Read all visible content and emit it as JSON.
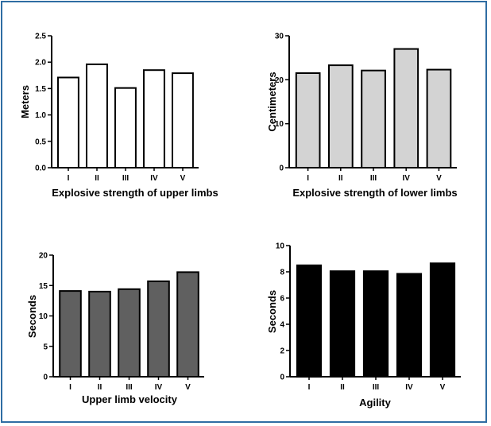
{
  "colors": {
    "frame": "#2f6da3"
  },
  "chart_data": [
    {
      "type": "bar",
      "categories": [
        "I",
        "II",
        "III",
        "IV",
        "V"
      ],
      "values": [
        1.71,
        1.96,
        1.51,
        1.85,
        1.79
      ],
      "title": "",
      "xlabel": "Explosive strength of upper limbs",
      "ylabel": "Meters",
      "ylim": [
        0,
        2.5
      ],
      "yticks": [
        "0.0",
        "0.5",
        "1.0",
        "1.5",
        "2.0",
        "2.5"
      ],
      "bar_color": "#ffffff",
      "grid": false
    },
    {
      "type": "bar",
      "categories": [
        "I",
        "II",
        "III",
        "IV",
        "V"
      ],
      "values": [
        21.5,
        23.3,
        22.1,
        27.0,
        22.3
      ],
      "title": "",
      "xlabel": "Explosive strength of lower limbs",
      "ylabel": "Centimeters",
      "ylim": [
        0,
        30
      ],
      "yticks": [
        "0",
        "10",
        "20",
        "30"
      ],
      "bar_color": "#d3d3d3",
      "grid": false
    },
    {
      "type": "bar",
      "categories": [
        "I",
        "II",
        "III",
        "IV",
        "V"
      ],
      "values": [
        14.1,
        14.0,
        14.4,
        15.7,
        17.2
      ],
      "title": "",
      "xlabel": "Upper limb velocity",
      "ylabel": "Seconds",
      "ylim": [
        0,
        20
      ],
      "yticks": [
        "0",
        "5",
        "10",
        "15",
        "20"
      ],
      "bar_color": "#606060",
      "grid": false
    },
    {
      "type": "bar",
      "categories": [
        "I",
        "II",
        "III",
        "IV",
        "V"
      ],
      "values": [
        8.5,
        8.05,
        8.05,
        7.85,
        8.65
      ],
      "title": "",
      "xlabel": "Agility",
      "ylabel": "Seconds",
      "ylim": [
        0,
        10
      ],
      "yticks": [
        "0",
        "2",
        "4",
        "6",
        "8",
        "10"
      ],
      "bar_color": "#000000",
      "grid": false
    }
  ]
}
